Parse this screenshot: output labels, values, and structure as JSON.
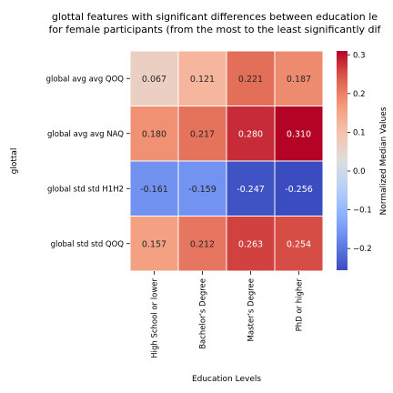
{
  "chart_data": {
    "type": "heatmap",
    "title_line1": "glottal features with significant differences between education le",
    "title_line2": "for female participants (from the most to the least significantly dif",
    "xlabel": "Education Levels",
    "ylabel": "glottal",
    "x_categories": [
      "High School or lower",
      "Bachelor's Degree",
      "Master's Degree",
      "PhD or higher"
    ],
    "y_categories": [
      "global avg avg QOQ",
      "global avg avg NAQ",
      "global std std H1H2",
      "global std std QOQ"
    ],
    "values": [
      [
        0.067,
        0.121,
        0.221,
        0.187
      ],
      [
        0.18,
        0.217,
        0.28,
        0.31
      ],
      [
        -0.161,
        -0.159,
        -0.247,
        -0.256
      ],
      [
        0.157,
        0.212,
        0.263,
        0.254
      ]
    ],
    "value_labels": [
      [
        "0.067",
        "0.121",
        "0.221",
        "0.187"
      ],
      [
        "0.180",
        "0.217",
        "0.280",
        "0.310"
      ],
      [
        "-0.161",
        "-0.159",
        "-0.247",
        "-0.256"
      ],
      [
        "0.157",
        "0.212",
        "0.263",
        "0.254"
      ]
    ],
    "colormap": "coolwarm",
    "vmin": -0.256,
    "vmax": 0.31,
    "colorbar": {
      "label": "Normalized Median Values",
      "ticks": [
        -0.2,
        -0.1,
        0.0,
        0.1,
        0.2,
        0.3
      ],
      "tick_labels": [
        "−0.2",
        "−0.1",
        "0.0",
        "0.1",
        "0.2",
        "0.3"
      ]
    }
  }
}
